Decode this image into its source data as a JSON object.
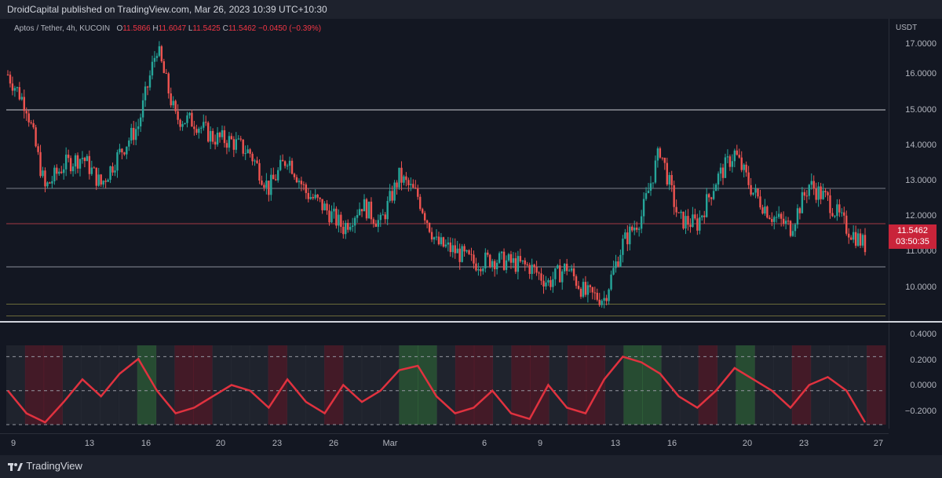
{
  "header": {
    "published_text": "DroidCapital published on TradingView.com, Mar 26, 2023 10:39 UTC+10:30"
  },
  "legend": {
    "symbol": "Aptos / Tether, 4h, KUCOIN",
    "o_label": "O",
    "o_value": "11.5866",
    "h_label": "H",
    "h_value": "11.6047",
    "l_label": "L",
    "l_value": "11.5425",
    "c_label": "C",
    "c_value": "11.5462",
    "change": "−0.0450 (−0.39%)"
  },
  "price_scale": {
    "currency": "USDT",
    "ticks": [
      "17.0000",
      "16.0000",
      "15.0000",
      "14.0000",
      "13.0000",
      "12.0000",
      "11.0000",
      "10.0000"
    ]
  },
  "price_tag": {
    "price": "11.5462",
    "countdown": "03:50:35"
  },
  "oscillator_scale": {
    "ticks": [
      "0.4000",
      "0.2000",
      "0.0000",
      "−0.2000"
    ]
  },
  "time_axis": {
    "labels": [
      "9",
      "13",
      "16",
      "20",
      "23",
      "26",
      "Mar",
      "6",
      "9",
      "13",
      "16",
      "20",
      "23",
      "27"
    ]
  },
  "footer": {
    "brand": "TradingView"
  },
  "colors": {
    "up": "#26a69a",
    "down": "#ef5350",
    "background": "#131722",
    "osc_line": "#e0323f"
  },
  "chart_data": {
    "type": "candlestick",
    "title": "Aptos / Tether, 4h, KUCOIN",
    "ylim": [
      9.7,
      17.2
    ],
    "horizontal_levels": [
      15.0,
      13.0,
      12.1,
      11.0,
      10.05,
      9.75
    ],
    "close_path": [
      [
        "Feb 8",
        15.9
      ],
      [
        "Feb 9",
        15.1
      ],
      [
        "Feb 10",
        13.0
      ],
      [
        "Feb 11",
        13.6
      ],
      [
        "Feb 12",
        13.8
      ],
      [
        "Feb 13",
        13.1
      ],
      [
        "Feb 14",
        13.9
      ],
      [
        "Feb 15",
        14.6
      ],
      [
        "Feb 16",
        16.6
      ],
      [
        "Feb 17",
        14.8
      ],
      [
        "Feb 18",
        14.7
      ],
      [
        "Feb 19",
        14.3
      ],
      [
        "Feb 20",
        14.2
      ],
      [
        "Feb 21",
        13.9
      ],
      [
        "Feb 22",
        13.0
      ],
      [
        "Feb 23",
        13.8
      ],
      [
        "Feb 24",
        12.9
      ],
      [
        "Feb 25",
        12.5
      ],
      [
        "Feb 26",
        12.0
      ],
      [
        "Feb 27",
        12.6
      ],
      [
        "Feb 28",
        12.1
      ],
      [
        "Mar 1",
        13.3
      ],
      [
        "Mar 2",
        12.8
      ],
      [
        "Mar 3",
        11.6
      ],
      [
        "Mar 4",
        11.4
      ],
      [
        "Mar 5",
        11.1
      ],
      [
        "Mar 6",
        11.2
      ],
      [
        "Mar 7",
        11.1
      ],
      [
        "Mar 8",
        11.0
      ],
      [
        "Mar 9",
        10.6
      ],
      [
        "Mar 10",
        11.0
      ],
      [
        "Mar 11",
        10.3
      ],
      [
        "Mar 12",
        10.2
      ],
      [
        "Mar 13",
        11.6
      ],
      [
        "Mar 14",
        12.3
      ],
      [
        "Mar 15",
        14.0
      ],
      [
        "Mar 16",
        12.2
      ],
      [
        "Mar 17",
        12.1
      ],
      [
        "Mar 18",
        13.2
      ],
      [
        "Mar 19",
        13.9
      ],
      [
        "Mar 20",
        12.9
      ],
      [
        "Mar 21",
        12.3
      ],
      [
        "Mar 22",
        12.0
      ],
      [
        "Mar 23",
        13.1
      ],
      [
        "Mar 24",
        12.7
      ],
      [
        "Mar 25",
        12.0
      ],
      [
        "Mar 26",
        11.55
      ]
    ],
    "oscillator": {
      "ylim": [
        -0.3,
        0.4
      ],
      "levels": [
        0.3,
        0,
        -0.3
      ],
      "values": [
        0.0,
        -0.2,
        -0.28,
        -0.1,
        0.1,
        -0.05,
        0.15,
        0.28,
        0.0,
        -0.2,
        -0.15,
        -0.05,
        0.05,
        0.0,
        -0.15,
        0.1,
        -0.1,
        -0.2,
        0.05,
        -0.1,
        0.0,
        0.18,
        0.22,
        -0.05,
        -0.2,
        -0.15,
        0.0,
        -0.2,
        -0.25,
        0.05,
        -0.15,
        -0.2,
        0.1,
        0.3,
        0.25,
        0.15,
        -0.05,
        -0.15,
        0.0,
        0.2,
        0.1,
        0.0,
        -0.15,
        0.05,
        0.12,
        0.0,
        -0.28
      ]
    }
  }
}
